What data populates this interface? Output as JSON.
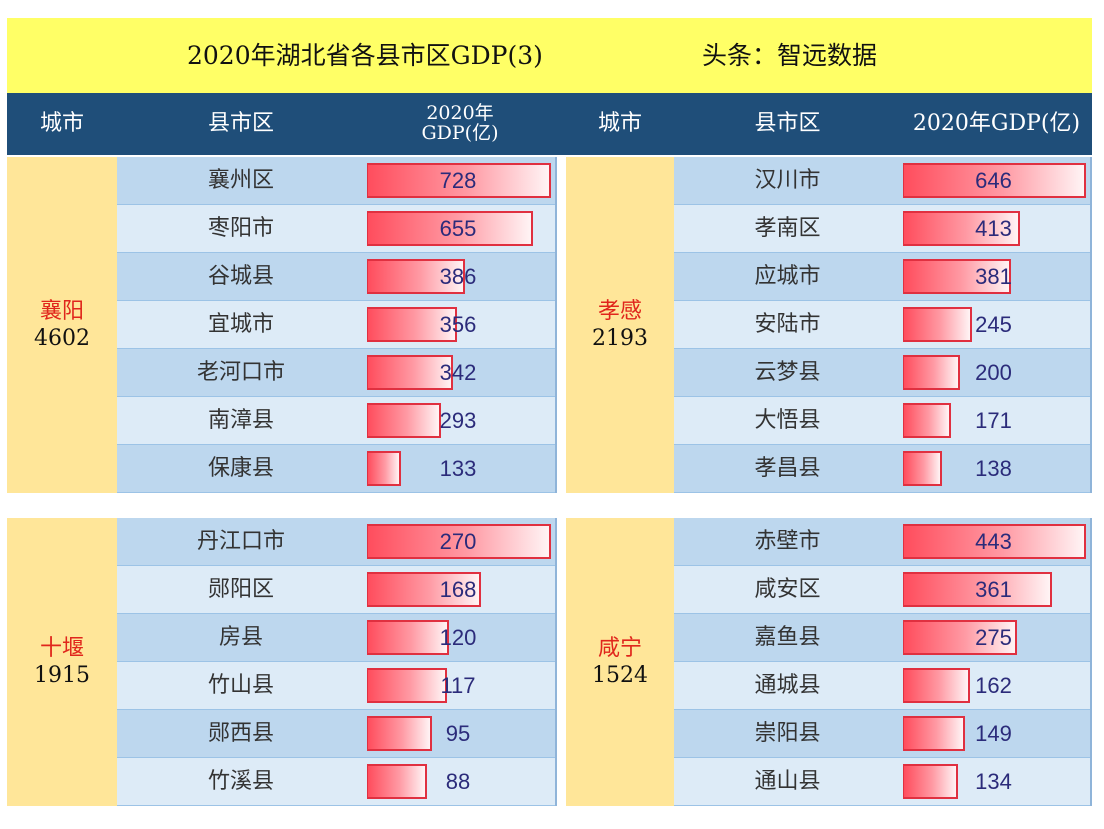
{
  "title": {
    "main": "2020年湖北省各县市区GDP(3)",
    "source": "头条：智远数据"
  },
  "header": {
    "left": {
      "city": "城市",
      "county": "县市区",
      "gdp_line1": "2020年",
      "gdp_line2": "GDP(亿)"
    },
    "right": {
      "city": "城市",
      "county": "县市区",
      "gdp": "2020年GDP(亿)"
    }
  },
  "groups": [
    {
      "city": "襄阳",
      "total": "4602",
      "rows": [
        {
          "county": "襄州区",
          "gdp": "728"
        },
        {
          "county": "枣阳市",
          "gdp": "655"
        },
        {
          "county": "谷城县",
          "gdp": "386"
        },
        {
          "county": "宜城市",
          "gdp": "356"
        },
        {
          "county": "老河口市",
          "gdp": "342"
        },
        {
          "county": "南漳县",
          "gdp": "293"
        },
        {
          "county": "保康县",
          "gdp": "133"
        }
      ]
    },
    {
      "city": "孝感",
      "total": "2193",
      "rows": [
        {
          "county": "汉川市",
          "gdp": "646"
        },
        {
          "county": "孝南区",
          "gdp": "413"
        },
        {
          "county": "应城市",
          "gdp": "381"
        },
        {
          "county": "安陆市",
          "gdp": "245"
        },
        {
          "county": "云梦县",
          "gdp": "200"
        },
        {
          "county": "大悟县",
          "gdp": "171"
        },
        {
          "county": "孝昌县",
          "gdp": "138"
        }
      ]
    },
    {
      "city": "十堰",
      "total": "1915",
      "rows": [
        {
          "county": "丹江口市",
          "gdp": "270"
        },
        {
          "county": "郧阳区",
          "gdp": "168"
        },
        {
          "county": "房县",
          "gdp": "120"
        },
        {
          "county": "竹山县",
          "gdp": "117"
        },
        {
          "county": "郧西县",
          "gdp": "95"
        },
        {
          "county": "竹溪县",
          "gdp": "88"
        }
      ]
    },
    {
      "city": "咸宁",
      "total": "1524",
      "rows": [
        {
          "county": "赤壁市",
          "gdp": "443"
        },
        {
          "county": "咸安区",
          "gdp": "361"
        },
        {
          "county": "嘉鱼县",
          "gdp": "275"
        },
        {
          "county": "通城县",
          "gdp": "162"
        },
        {
          "county": "崇阳县",
          "gdp": "149"
        },
        {
          "county": "通山县",
          "gdp": "134"
        }
      ]
    }
  ]
}
